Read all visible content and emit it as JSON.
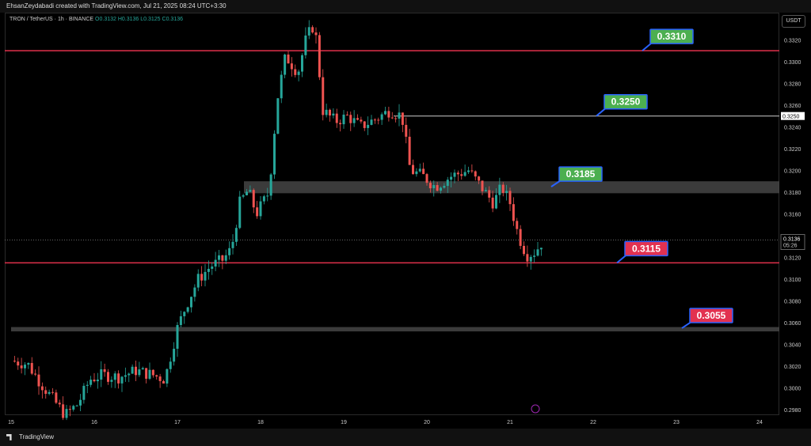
{
  "header": {
    "attribution": "EhsanZeydabadi created with TradingView.com, Jul 21, 2025 08:24 UTC+3:30"
  },
  "legend": {
    "symbol": "TRON / TetherUS · 1h · BINANCE",
    "o": "O0.3132",
    "h": "H0.3136",
    "l": "L0.3125",
    "c": "C0.3136"
  },
  "currency": "USDT",
  "footer": {
    "brand": "TradingView"
  },
  "colors": {
    "up": "#26a69a",
    "down": "#ef5350",
    "level": "#e0314b",
    "zone": "#4a4a4a",
    "label_green": "#4caf50",
    "label_red": "#e23150",
    "label_border": "#2962ff"
  },
  "chart_data": {
    "type": "candlestick",
    "ylim": [
      0.2975,
      0.3345
    ],
    "y_ticks": [
      "0.3320",
      "0.3300",
      "0.3280",
      "0.3260",
      "0.3240",
      "0.3220",
      "0.3200",
      "0.3180",
      "0.3160",
      "0.3140",
      "0.3120",
      "0.3100",
      "0.3080",
      "0.3060",
      "0.3040",
      "0.3020",
      "0.3000",
      "0.2980"
    ],
    "x_ticks": [
      "15",
      "16",
      "17",
      "18",
      "19",
      "20",
      "21",
      "22",
      "23",
      "24"
    ],
    "last_price": "0.3136",
    "countdown": "05:26",
    "price_tag_0325": "0.3250",
    "levels": [
      {
        "price": 0.331,
        "label": "0.3310",
        "color": "green"
      },
      {
        "price": 0.325,
        "label": "0.3250",
        "color": "green"
      },
      {
        "price": 0.3185,
        "label": "0.3185",
        "color": "green"
      },
      {
        "price": 0.3115,
        "label": "0.3115",
        "color": "red"
      },
      {
        "price": 0.3055,
        "label": "0.3055",
        "color": "red"
      }
    ],
    "zones": [
      {
        "from": 0.3179,
        "to": 0.319,
        "start_day": 17.8
      },
      {
        "from": 0.3052,
        "to": 0.3056,
        "start_day": 15
      }
    ],
    "close_path": [
      [
        15.0,
        0.3025
      ],
      [
        15.2,
        0.3022
      ],
      [
        15.35,
        0.3005
      ],
      [
        15.5,
        0.299
      ],
      [
        15.65,
        0.2975
      ],
      [
        15.8,
        0.2985
      ],
      [
        15.95,
        0.3008
      ],
      [
        16.1,
        0.3012
      ],
      [
        16.3,
        0.301
      ],
      [
        16.5,
        0.3016
      ],
      [
        16.7,
        0.3012
      ],
      [
        16.85,
        0.3008
      ],
      [
        17.0,
        0.3055
      ],
      [
        17.1,
        0.3075
      ],
      [
        17.25,
        0.31
      ],
      [
        17.4,
        0.3112
      ],
      [
        17.55,
        0.3118
      ],
      [
        17.65,
        0.3128
      ],
      [
        17.75,
        0.317
      ],
      [
        17.85,
        0.3182
      ],
      [
        17.95,
        0.316
      ],
      [
        18.1,
        0.318
      ],
      [
        18.2,
        0.3265
      ],
      [
        18.3,
        0.3305
      ],
      [
        18.45,
        0.329
      ],
      [
        18.55,
        0.3322
      ],
      [
        18.65,
        0.3335
      ],
      [
        18.75,
        0.3255
      ],
      [
        18.9,
        0.3245
      ],
      [
        19.05,
        0.325
      ],
      [
        19.2,
        0.324
      ],
      [
        19.4,
        0.3248
      ],
      [
        19.55,
        0.3255
      ],
      [
        19.7,
        0.325
      ],
      [
        19.8,
        0.32
      ],
      [
        19.95,
        0.3195
      ],
      [
        20.1,
        0.3185
      ],
      [
        20.3,
        0.3195
      ],
      [
        20.5,
        0.32
      ],
      [
        20.65,
        0.3185
      ],
      [
        20.8,
        0.317
      ],
      [
        20.9,
        0.3185
      ],
      [
        21.0,
        0.317
      ],
      [
        21.1,
        0.314
      ],
      [
        21.2,
        0.3122
      ],
      [
        21.3,
        0.3125
      ],
      [
        21.4,
        0.3136
      ]
    ]
  }
}
